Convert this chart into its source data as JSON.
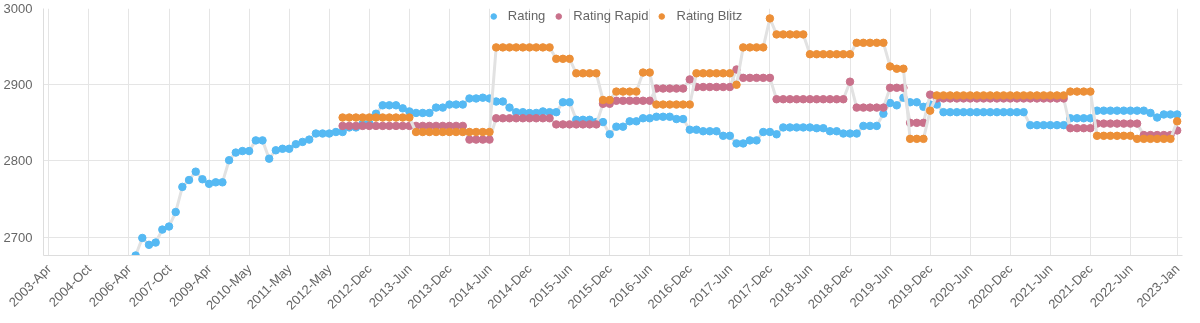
{
  "chart_data": {
    "type": "line",
    "marker": "circle",
    "grid": true,
    "legend": "top",
    "ylim": [
      2676,
      3000
    ],
    "yticks": [
      2700,
      2800,
      2900,
      3000
    ],
    "categories": [
      "2003-Apr",
      null,
      null,
      null,
      null,
      null,
      "2004-Oct",
      null,
      null,
      null,
      null,
      null,
      "2006-Apr",
      null,
      null,
      null,
      null,
      null,
      "2007-Oct",
      null,
      null,
      null,
      null,
      null,
      "2009-Apr",
      null,
      null,
      null,
      null,
      null,
      "2010-May",
      null,
      null,
      null,
      null,
      null,
      "2011-May",
      null,
      null,
      null,
      null,
      null,
      "2012-May",
      null,
      null,
      null,
      null,
      null,
      "2012-Dec",
      null,
      null,
      null,
      null,
      null,
      "2013-Jun",
      null,
      null,
      null,
      null,
      null,
      "2013-Dec",
      null,
      null,
      null,
      null,
      null,
      "2014-Jun",
      null,
      null,
      null,
      null,
      null,
      "2014-Dec",
      null,
      null,
      null,
      null,
      null,
      "2015-Jun",
      null,
      null,
      null,
      null,
      null,
      "2015-Dec",
      null,
      null,
      null,
      null,
      null,
      "2016-Jun",
      null,
      null,
      null,
      null,
      null,
      "2016-Dec",
      null,
      null,
      null,
      null,
      null,
      "2017-Jun",
      null,
      null,
      null,
      null,
      null,
      "2017-Dec",
      null,
      null,
      null,
      null,
      null,
      "2018-Jun",
      null,
      null,
      null,
      null,
      null,
      "2018-Dec",
      null,
      null,
      null,
      null,
      null,
      "2019-Jun",
      null,
      null,
      null,
      null,
      null,
      "2019-Dec",
      null,
      null,
      null,
      null,
      null,
      "2020-Jun",
      null,
      null,
      null,
      null,
      null,
      "2020-Dec",
      null,
      null,
      null,
      null,
      null,
      "2021-Jun",
      null,
      null,
      null,
      null,
      null,
      "2021-Dec",
      null,
      null,
      null,
      null,
      null,
      "2022-Jun",
      null,
      null,
      null,
      null,
      null,
      null,
      "2023-Jan"
    ],
    "series": [
      {
        "name": "Rating",
        "color": "#55b9f3",
        "values": [
          null,
          null,
          null,
          null,
          null,
          null,
          null,
          null,
          null,
          null,
          null,
          null,
          null,
          2676,
          2699,
          2690,
          2693,
          2710,
          2714,
          2733,
          2766,
          2775,
          2786,
          2776,
          2770,
          2772,
          2772,
          2801,
          2811,
          2813,
          2813,
          2827,
          2827,
          2803,
          2814,
          2816,
          2816,
          2822,
          2825,
          2828,
          2836,
          2836,
          2836,
          2838,
          2838,
          2844,
          2844,
          2849,
          2849,
          2862,
          2873,
          2873,
          2873,
          2869,
          2865,
          2863,
          2863,
          2863,
          2870,
          2870,
          2874,
          2874,
          2874,
          2882,
          2882,
          2883,
          2882,
          2878,
          2878,
          2870,
          2864,
          2864,
          2863,
          2863,
          2865,
          2864,
          2864,
          2877,
          2877,
          2854,
          2854,
          2854,
          2851,
          2851,
          2835,
          2845,
          2845,
          2852,
          2852,
          2856,
          2856,
          2858,
          2858,
          2858,
          2855,
          2855,
          2841,
          2841,
          2839,
          2839,
          2839,
          2833,
          2833,
          2823,
          2823,
          2827,
          2827,
          2838,
          2838,
          2835,
          2844,
          2844,
          2844,
          2844,
          2844,
          2843,
          2843,
          2839,
          2839,
          2836,
          2836,
          2836,
          2846,
          2846,
          2846,
          2862,
          2876,
          2873,
          2883,
          2877,
          2877,
          2871,
          2874,
          2874,
          2864,
          2864,
          2864,
          2864,
          2864,
          2864,
          2864,
          2864,
          2864,
          2864,
          2864,
          2864,
          2864,
          2847,
          2847,
          2847,
          2847,
          2847,
          2847,
          2856,
          2856,
          2856,
          2856,
          2866,
          2866,
          2866,
          2866,
          2866,
          2866,
          2866,
          2866,
          2863,
          2857,
          2861,
          2861,
          2861
        ]
      },
      {
        "name": "Rating Rapid",
        "color": "#c9718b",
        "values": [
          null,
          null,
          null,
          null,
          null,
          null,
          null,
          null,
          null,
          null,
          null,
          null,
          null,
          null,
          null,
          null,
          null,
          null,
          null,
          null,
          null,
          null,
          null,
          null,
          null,
          null,
          null,
          null,
          null,
          null,
          null,
          null,
          null,
          null,
          null,
          null,
          null,
          null,
          null,
          null,
          null,
          null,
          null,
          null,
          2846,
          2846,
          2846,
          2846,
          2846,
          2846,
          2846,
          2846,
          2846,
          2846,
          2846,
          2846,
          2846,
          2846,
          2846,
          2846,
          2846,
          2846,
          2846,
          2828,
          2828,
          2828,
          2828,
          2856,
          2856,
          2856,
          2856,
          2856,
          2856,
          2856,
          2856,
          2856,
          2848,
          2848,
          2848,
          2848,
          2848,
          2848,
          2848,
          2875,
          2875,
          2879,
          2879,
          2879,
          2879,
          2879,
          2879,
          2895,
          2895,
          2895,
          2895,
          2895,
          2907,
          2897,
          2897,
          2897,
          2897,
          2897,
          2897,
          2920,
          2909,
          2909,
          2909,
          2909,
          2909,
          2881,
          2881,
          2881,
          2881,
          2881,
          2881,
          2881,
          2881,
          2881,
          2881,
          2881,
          2904,
          2870,
          2870,
          2870,
          2870,
          2870,
          2896,
          2896,
          2896,
          2850,
          2850,
          2850,
          2887,
          2882,
          2882,
          2882,
          2882,
          2882,
          2882,
          2882,
          2882,
          2882,
          2882,
          2882,
          2882,
          2882,
          2882,
          2882,
          2882,
          2882,
          2882,
          2882,
          2882,
          2843,
          2843,
          2843,
          2843,
          2849,
          2849,
          2849,
          2849,
          2849,
          2849,
          2849,
          2834,
          2834,
          2834,
          2834,
          2834,
          2840
        ]
      },
      {
        "name": "Rating Blitz",
        "color": "#ec8f37",
        "values": [
          null,
          null,
          null,
          null,
          null,
          null,
          null,
          null,
          null,
          null,
          null,
          null,
          null,
          null,
          null,
          null,
          null,
          null,
          null,
          null,
          null,
          null,
          null,
          null,
          null,
          null,
          null,
          null,
          null,
          null,
          null,
          null,
          null,
          null,
          null,
          null,
          null,
          null,
          null,
          null,
          null,
          null,
          null,
          null,
          2857,
          2857,
          2857,
          2857,
          2857,
          2857,
          2857,
          2857,
          2857,
          2857,
          2857,
          2838,
          2838,
          2838,
          2838,
          2838,
          2838,
          2838,
          2838,
          2838,
          2838,
          2838,
          2838,
          2949,
          2949,
          2949,
          2949,
          2949,
          2949,
          2949,
          2949,
          2949,
          2934,
          2934,
          2934,
          2915,
          2915,
          2915,
          2915,
          2880,
          2880,
          2891,
          2891,
          2891,
          2891,
          2916,
          2916,
          2874,
          2874,
          2874,
          2874,
          2874,
          2874,
          2915,
          2915,
          2915,
          2915,
          2915,
          2915,
          2900,
          2949,
          2949,
          2949,
          2949,
          2987,
          2966,
          2966,
          2966,
          2966,
          2966,
          2940,
          2940,
          2940,
          2940,
          2940,
          2940,
          2940,
          2955,
          2955,
          2955,
          2955,
          2955,
          2924,
          2921,
          2921,
          2829,
          2829,
          2829,
          2866,
          2886,
          2886,
          2886,
          2886,
          2886,
          2886,
          2886,
          2886,
          2886,
          2886,
          2886,
          2886,
          2886,
          2886,
          2886,
          2886,
          2886,
          2886,
          2886,
          2886,
          2891,
          2891,
          2891,
          2891,
          2833,
          2833,
          2833,
          2833,
          2833,
          2833,
          2829,
          2829,
          2829,
          2829,
          2829,
          2829,
          2852
        ]
      }
    ]
  }
}
